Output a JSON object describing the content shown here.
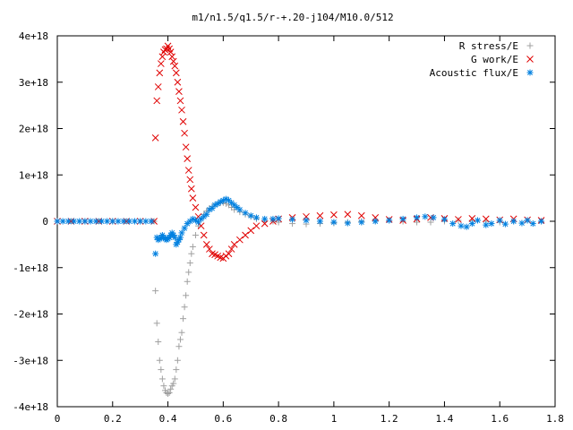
{
  "chart_data": {
    "type": "scatter",
    "title": "m1/n1.5/q1.5/r-+.20-j104/M10.0/512",
    "xlabel": "",
    "ylabel": "",
    "xlim": [
      0,
      1.8
    ],
    "ylim": [
      -4e+18,
      4e+18
    ],
    "x_ticks": [
      "0",
      "0.2",
      "0.4",
      "0.6",
      "0.8",
      "1",
      "1.2",
      "1.4",
      "1.6",
      "1.8"
    ],
    "y_ticks": [
      "4e+18",
      "3e+18",
      "2e+18",
      "1e+18",
      "0",
      "-1e+18",
      "-2e+18",
      "-3e+18",
      "-4e+18"
    ],
    "x_tick_values": [
      0,
      0.2,
      0.4,
      0.6,
      0.8,
      1.0,
      1.2,
      1.4,
      1.6,
      1.8
    ],
    "y_tick_values": [
      4e+18,
      3e+18,
      2e+18,
      1e+18,
      0,
      -1e+18,
      -2e+18,
      -3e+18,
      -4e+18
    ],
    "grid": false,
    "legend_position": "top-right",
    "series": [
      {
        "name": "R stress/E",
        "marker": "plus",
        "color": "#a0a0a0",
        "points": [
          [
            0.0,
            0
          ],
          [
            0.05,
            0
          ],
          [
            0.1,
            0
          ],
          [
            0.15,
            0
          ],
          [
            0.2,
            0
          ],
          [
            0.25,
            0
          ],
          [
            0.3,
            0
          ],
          [
            0.35,
            0
          ],
          [
            0.355,
            -1.5e+18
          ],
          [
            0.36,
            -2.2e+18
          ],
          [
            0.365,
            -2.6e+18
          ],
          [
            0.37,
            -3e+18
          ],
          [
            0.375,
            -3.2e+18
          ],
          [
            0.38,
            -3.4e+18
          ],
          [
            0.385,
            -3.55e+18
          ],
          [
            0.39,
            -3.65e+18
          ],
          [
            0.395,
            -3.7e+18
          ],
          [
            0.4,
            -3.72e+18
          ],
          [
            0.405,
            -3.7e+18
          ],
          [
            0.41,
            -3.62e+18
          ],
          [
            0.415,
            -3.55e+18
          ],
          [
            0.42,
            -3.5e+18
          ],
          [
            0.425,
            -3.4e+18
          ],
          [
            0.43,
            -3.2e+18
          ],
          [
            0.435,
            -3e+18
          ],
          [
            0.44,
            -2.7e+18
          ],
          [
            0.445,
            -2.55e+18
          ],
          [
            0.45,
            -2.4e+18
          ],
          [
            0.455,
            -2.1e+18
          ],
          [
            0.46,
            -1.85e+18
          ],
          [
            0.465,
            -1.6e+18
          ],
          [
            0.47,
            -1.3e+18
          ],
          [
            0.475,
            -1.1e+18
          ],
          [
            0.48,
            -9e+17
          ],
          [
            0.485,
            -7e+17
          ],
          [
            0.49,
            -5.5e+17
          ],
          [
            0.5,
            -3e+17
          ],
          [
            0.51,
            -1e+17
          ],
          [
            0.52,
            5e+16
          ],
          [
            0.53,
            1.5e+17
          ],
          [
            0.54,
            2.2e+17
          ],
          [
            0.55,
            2.8e+17
          ],
          [
            0.56,
            3.2e+17
          ],
          [
            0.57,
            3.5e+17
          ],
          [
            0.58,
            3.8e+17
          ],
          [
            0.59,
            4e+17
          ],
          [
            0.6,
            4e+17
          ],
          [
            0.61,
            3.8e+17
          ],
          [
            0.62,
            3.5e+17
          ],
          [
            0.63,
            3e+17
          ],
          [
            0.64,
            2.5e+17
          ],
          [
            0.66,
            2e+17
          ],
          [
            0.68,
            1.5e+17
          ],
          [
            0.7,
            1e+17
          ],
          [
            0.72,
            5e+16
          ],
          [
            0.75,
            0.0
          ],
          [
            0.78,
            0.0
          ],
          [
            0.8,
            -2e+16
          ],
          [
            0.85,
            -5e+16
          ],
          [
            0.9,
            -6e+16
          ],
          [
            0.95,
            -5e+16
          ],
          [
            1.0,
            -4e+16
          ],
          [
            1.05,
            -2e+16
          ],
          [
            1.1,
            0.0
          ],
          [
            1.15,
            2e+16
          ],
          [
            1.2,
            2e+16
          ],
          [
            1.25,
            0.0
          ],
          [
            1.3,
            -2e+16
          ],
          [
            1.35,
            -2e+16
          ],
          [
            1.4,
            0.0
          ],
          [
            1.45,
            2e+16
          ],
          [
            1.5,
            2e+16
          ],
          [
            1.55,
            0.0
          ],
          [
            1.6,
            -2e+16
          ],
          [
            1.65,
            0.0
          ],
          [
            1.7,
            2e+16
          ],
          [
            1.75,
            0.0
          ]
        ]
      },
      {
        "name": "G work/E",
        "marker": "cross",
        "color": "#e00000",
        "points": [
          [
            0.0,
            0
          ],
          [
            0.05,
            0
          ],
          [
            0.1,
            0
          ],
          [
            0.15,
            0
          ],
          [
            0.2,
            0
          ],
          [
            0.25,
            0
          ],
          [
            0.3,
            0
          ],
          [
            0.35,
            0
          ],
          [
            0.355,
            1.8e+18
          ],
          [
            0.36,
            2.6e+18
          ],
          [
            0.365,
            2.9e+18
          ],
          [
            0.37,
            3.2e+18
          ],
          [
            0.375,
            3.4e+18
          ],
          [
            0.38,
            3.55e+18
          ],
          [
            0.385,
            3.65e+18
          ],
          [
            0.39,
            3.7e+18
          ],
          [
            0.395,
            3.72e+18
          ],
          [
            0.4,
            3.78e+18
          ],
          [
            0.405,
            3.72e+18
          ],
          [
            0.41,
            3.65e+18
          ],
          [
            0.415,
            3.55e+18
          ],
          [
            0.42,
            3.45e+18
          ],
          [
            0.425,
            3.35e+18
          ],
          [
            0.43,
            3.2e+18
          ],
          [
            0.435,
            3e+18
          ],
          [
            0.44,
            2.8e+18
          ],
          [
            0.445,
            2.6e+18
          ],
          [
            0.45,
            2.4e+18
          ],
          [
            0.455,
            2.15e+18
          ],
          [
            0.46,
            1.9e+18
          ],
          [
            0.465,
            1.6e+18
          ],
          [
            0.47,
            1.35e+18
          ],
          [
            0.475,
            1.1e+18
          ],
          [
            0.48,
            9e+17
          ],
          [
            0.485,
            7e+17
          ],
          [
            0.49,
            5e+17
          ],
          [
            0.5,
            3e+17
          ],
          [
            0.51,
            1e+17
          ],
          [
            0.52,
            -1e+17
          ],
          [
            0.53,
            -3e+17
          ],
          [
            0.54,
            -5e+17
          ],
          [
            0.55,
            -6e+17
          ],
          [
            0.56,
            -7e+17
          ],
          [
            0.57,
            -7.2e+17
          ],
          [
            0.58,
            -7.5e+17
          ],
          [
            0.59,
            -7.8e+17
          ],
          [
            0.6,
            -8e+17
          ],
          [
            0.61,
            -7.5e+17
          ],
          [
            0.62,
            -7e+17
          ],
          [
            0.63,
            -6e+17
          ],
          [
            0.64,
            -5e+17
          ],
          [
            0.66,
            -4e+17
          ],
          [
            0.68,
            -3e+17
          ],
          [
            0.7,
            -2e+17
          ],
          [
            0.72,
            -1e+17
          ],
          [
            0.75,
            -5e+16
          ],
          [
            0.78,
            0.0
          ],
          [
            0.8,
            5e+16
          ],
          [
            0.85,
            8e+16
          ],
          [
            0.9,
            1e+17
          ],
          [
            0.95,
            1.2e+17
          ],
          [
            1.0,
            1.4e+17
          ],
          [
            1.05,
            1.5e+17
          ],
          [
            1.1,
            1.2e+17
          ],
          [
            1.15,
            8e+16
          ],
          [
            1.2,
            4e+16
          ],
          [
            1.25,
            2e+16
          ],
          [
            1.3,
            5e+16
          ],
          [
            1.35,
            8e+16
          ],
          [
            1.4,
            6e+16
          ],
          [
            1.45,
            4e+16
          ],
          [
            1.5,
            6e+16
          ],
          [
            1.55,
            5e+16
          ],
          [
            1.6,
            3e+16
          ],
          [
            1.65,
            5e+16
          ],
          [
            1.7,
            3e+16
          ],
          [
            1.75,
            2e+16
          ]
        ]
      },
      {
        "name": "Acoustic flux/E",
        "marker": "star",
        "color": "#0080e0",
        "points": [
          [
            0.0,
            0
          ],
          [
            0.02,
            0
          ],
          [
            0.04,
            0
          ],
          [
            0.06,
            0
          ],
          [
            0.08,
            0
          ],
          [
            0.1,
            0
          ],
          [
            0.12,
            0
          ],
          [
            0.14,
            0
          ],
          [
            0.16,
            0
          ],
          [
            0.18,
            0
          ],
          [
            0.2,
            0
          ],
          [
            0.22,
            0
          ],
          [
            0.24,
            0
          ],
          [
            0.26,
            0
          ],
          [
            0.28,
            0
          ],
          [
            0.3,
            0
          ],
          [
            0.32,
            0
          ],
          [
            0.34,
            0
          ],
          [
            0.355,
            -7e+17
          ],
          [
            0.36,
            -3.5e+17
          ],
          [
            0.365,
            -4e+17
          ],
          [
            0.37,
            -3.8e+17
          ],
          [
            0.375,
            -3.5e+17
          ],
          [
            0.38,
            -3e+17
          ],
          [
            0.385,
            -3.5e+17
          ],
          [
            0.39,
            -3.8e+17
          ],
          [
            0.395,
            -4e+17
          ],
          [
            0.4,
            -3.8e+17
          ],
          [
            0.405,
            -3.5e+17
          ],
          [
            0.41,
            -3e+17
          ],
          [
            0.415,
            -2.5e+17
          ],
          [
            0.42,
            -3e+17
          ],
          [
            0.425,
            -3.5e+17
          ],
          [
            0.43,
            -5e+17
          ],
          [
            0.435,
            -4.5e+17
          ],
          [
            0.44,
            -4e+17
          ],
          [
            0.445,
            -3.5e+17
          ],
          [
            0.45,
            -2.5e+17
          ],
          [
            0.46,
            -1.5e+17
          ],
          [
            0.47,
            -5e+16
          ],
          [
            0.48,
            0.0
          ],
          [
            0.49,
            5e+16
          ],
          [
            0.5,
            2e+16
          ],
          [
            0.51,
            -2e+16
          ],
          [
            0.52,
            5e+16
          ],
          [
            0.53,
            1e+17
          ],
          [
            0.54,
            1.5e+17
          ],
          [
            0.55,
            2.5e+17
          ],
          [
            0.56,
            2.8e+17
          ],
          [
            0.57,
            3.5e+17
          ],
          [
            0.58,
            3.8e+17
          ],
          [
            0.59,
            4.2e+17
          ],
          [
            0.6,
            4.5e+17
          ],
          [
            0.61,
            4.8e+17
          ],
          [
            0.62,
            4.5e+17
          ],
          [
            0.63,
            4e+17
          ],
          [
            0.64,
            3.5e+17
          ],
          [
            0.65,
            3e+17
          ],
          [
            0.66,
            2.5e+17
          ],
          [
            0.68,
            1.8e+17
          ],
          [
            0.7,
            1.2e+17
          ],
          [
            0.72,
            8e+16
          ],
          [
            0.75,
            5e+16
          ],
          [
            0.78,
            5e+16
          ],
          [
            0.8,
            6e+16
          ],
          [
            0.85,
            4e+16
          ],
          [
            0.9,
            2e+16
          ],
          [
            0.95,
            0.0
          ],
          [
            1.0,
            -2e+16
          ],
          [
            1.05,
            -4e+16
          ],
          [
            1.1,
            -2e+16
          ],
          [
            1.15,
            0.0
          ],
          [
            1.2,
            2e+16
          ],
          [
            1.25,
            5e+16
          ],
          [
            1.3,
            8e+16
          ],
          [
            1.33,
            1e+17
          ],
          [
            1.36,
            8e+16
          ],
          [
            1.4,
            4e+16
          ],
          [
            1.43,
            -5e+16
          ],
          [
            1.46,
            -1e+17
          ],
          [
            1.48,
            -1.2e+17
          ],
          [
            1.5,
            -5e+16
          ],
          [
            1.52,
            2e+16
          ],
          [
            1.55,
            -8e+16
          ],
          [
            1.57,
            -5e+16
          ],
          [
            1.6,
            2e+16
          ],
          [
            1.62,
            -6e+16
          ],
          [
            1.65,
            0.0
          ],
          [
            1.68,
            -4e+16
          ],
          [
            1.7,
            2e+16
          ],
          [
            1.72,
            -5e+16
          ],
          [
            1.75,
            0.0
          ]
        ]
      }
    ]
  }
}
